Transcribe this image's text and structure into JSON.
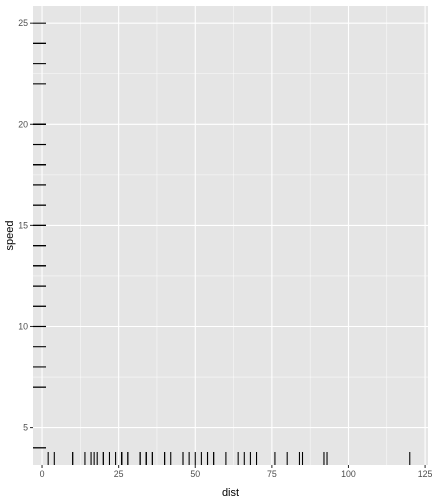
{
  "chart_data": {
    "type": "rug",
    "xlabel": "dist",
    "ylabel": "speed",
    "xlim": [
      -2.95,
      125.95
    ],
    "ylim": [
      3.15,
      25.85
    ],
    "xticks": [
      0,
      25,
      50,
      75,
      100,
      125
    ],
    "yticks": [
      5,
      10,
      15,
      20,
      25
    ],
    "grid": true,
    "legend": "none",
    "x_rug": [
      2,
      10,
      4,
      22,
      16,
      10,
      18,
      26,
      34,
      17,
      28,
      14,
      20,
      24,
      28,
      26,
      34,
      34,
      46,
      26,
      36,
      60,
      80,
      20,
      26,
      54,
      32,
      40,
      32,
      40,
      50,
      42,
      56,
      76,
      84,
      36,
      46,
      68,
      32,
      48,
      52,
      56,
      64,
      66,
      54,
      70,
      92,
      93,
      120,
      85
    ],
    "y_rug": [
      4,
      4,
      7,
      7,
      8,
      9,
      10,
      10,
      10,
      11,
      11,
      12,
      12,
      12,
      12,
      13,
      13,
      13,
      13,
      14,
      14,
      14,
      14,
      15,
      15,
      15,
      16,
      16,
      17,
      17,
      17,
      18,
      18,
      18,
      18,
      19,
      19,
      19,
      20,
      20,
      20,
      20,
      20,
      22,
      23,
      24,
      24,
      24,
      24,
      25
    ]
  },
  "colors": {
    "panel": "#e5e5e5",
    "grid_major": "#ffffff",
    "rug": "#000000",
    "tick_text": "#4d4d4d"
  }
}
